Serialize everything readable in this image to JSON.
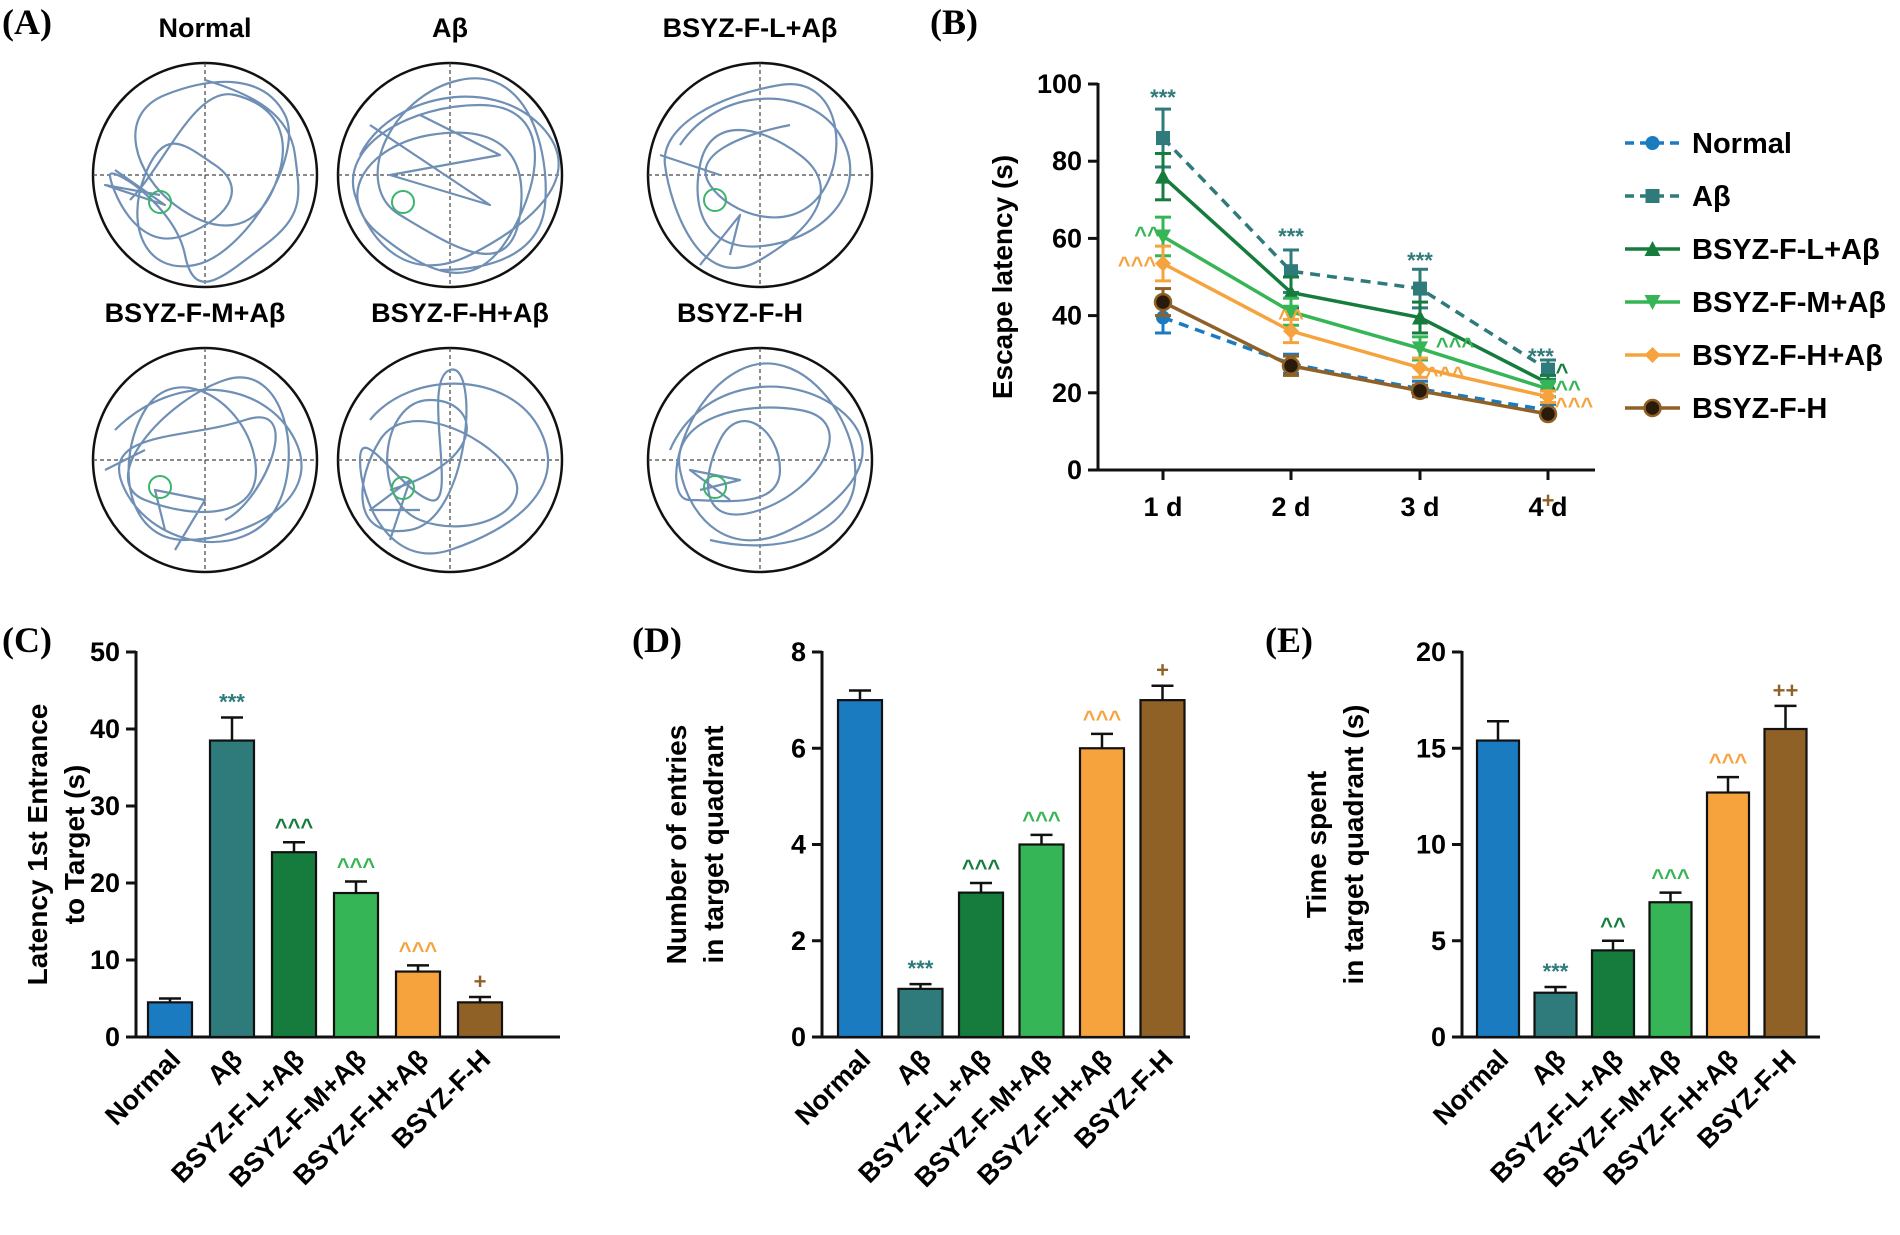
{
  "panels": {
    "A": {
      "label": "(A)",
      "mazes": [
        {
          "title": "Normal"
        },
        {
          "title": "Aβ"
        },
        {
          "title": "BSYZ-F-L+Aβ"
        },
        {
          "title": "BSYZ-F-M+Aβ"
        },
        {
          "title": "BSYZ-F-H+Aβ"
        },
        {
          "title": "BSYZ-F-H"
        }
      ]
    },
    "B": {
      "label": "(B)"
    },
    "C": {
      "label": "(C)"
    },
    "D": {
      "label": "(D)"
    },
    "E": {
      "label": "(E)"
    }
  },
  "colors": {
    "Normal": "#1b7bc1",
    "Abeta": "#2f7a7a",
    "L": "#167c3d",
    "M": "#35b555",
    "H": "#f6a33e",
    "F": "#8f6127",
    "target": "#3cb46e",
    "path": "#6f8fb4"
  },
  "chart_data": [
    {
      "id": "B",
      "type": "line",
      "ylabel": "Escape latency (s)",
      "xlabel": "",
      "categories": [
        "1 d",
        "2 d",
        "3 d",
        "4 d"
      ],
      "ylim": [
        0,
        100
      ],
      "yticks": [
        0,
        20,
        40,
        60,
        80,
        100
      ],
      "legend": "right",
      "series": [
        {
          "name": "Normal",
          "values": [
            39.5,
            27.5,
            21,
            15.5
          ],
          "err": [
            4,
            2.5,
            2,
            1.5
          ],
          "style": "dashed",
          "marker": "circle",
          "color": "#1b7bc1"
        },
        {
          "name": "Aβ",
          "values": [
            86,
            51.5,
            47,
            26
          ],
          "err": [
            7.5,
            5.5,
            5,
            2.5
          ],
          "style": "dashed",
          "marker": "square",
          "color": "#2f7a7a",
          "sig": [
            "***",
            "***",
            "***",
            "***"
          ]
        },
        {
          "name": "BSYZ-F-L+Aβ",
          "values": [
            76,
            46,
            39.5,
            22.5
          ],
          "err": [
            6,
            4,
            4,
            2
          ],
          "style": "solid",
          "marker": "triangle-up",
          "color": "#167c3d",
          "sig": [
            "",
            "",
            "",
            "^"
          ]
        },
        {
          "name": "BSYZ-F-M+Aβ",
          "values": [
            60.5,
            41,
            31.5,
            21
          ],
          "err": [
            5,
            3.5,
            3,
            2
          ],
          "style": "solid",
          "marker": "triangle-down",
          "color": "#35b555",
          "sig": [
            "^^",
            "",
            "^^^",
            "^^"
          ]
        },
        {
          "name": "BSYZ-F-H+Aβ",
          "values": [
            53.5,
            36,
            26.5,
            19
          ],
          "err": [
            4.5,
            3,
            2.5,
            1.5
          ],
          "style": "solid",
          "marker": "diamond",
          "color": "#f6a33e",
          "sig": [
            "^^^",
            "^^",
            "^^^",
            "^^^"
          ]
        },
        {
          "name": "BSYZ-F-H",
          "values": [
            43.5,
            27,
            20.5,
            14.5
          ],
          "err": [
            3.5,
            2.5,
            1.5,
            1
          ],
          "style": "solid",
          "marker": "circle-dark",
          "color": "#8f6127",
          "sig": [
            "",
            "",
            "",
            "+"
          ]
        }
      ]
    },
    {
      "id": "C",
      "type": "bar",
      "ylabel": [
        "Latency 1st Entrance",
        "to Target (s)"
      ],
      "xlabel": "",
      "categories": [
        "Normal",
        "Aβ",
        "BSYZ-F-L+Aβ",
        "BSYZ-F-M+Aβ",
        "BSYZ-F-H+Aβ",
        "BSYZ-F-H"
      ],
      "values": [
        4.5,
        38.5,
        24,
        18.7,
        8.5,
        4.5
      ],
      "errors": [
        0.5,
        3,
        1.3,
        1.5,
        0.8,
        0.7
      ],
      "sig": [
        "",
        "***",
        "^^^",
        "^^^",
        "^^^",
        "+"
      ],
      "ylim": [
        0,
        50
      ],
      "yticks": [
        0,
        10,
        20,
        30,
        40,
        50
      ]
    },
    {
      "id": "D",
      "type": "bar",
      "ylabel": [
        "Number of entries",
        "in target quadrant"
      ],
      "xlabel": "",
      "categories": [
        "Normal",
        "Aβ",
        "BSYZ-F-L+Aβ",
        "BSYZ-F-M+Aβ",
        "BSYZ-F-H+Aβ",
        "BSYZ-F-H"
      ],
      "values": [
        7,
        1,
        3,
        4,
        6,
        7
      ],
      "errors": [
        0.2,
        0.1,
        0.2,
        0.2,
        0.3,
        0.3
      ],
      "sig": [
        "",
        "***",
        "^^^",
        "^^^",
        "^^^",
        "+"
      ],
      "ylim": [
        0,
        8
      ],
      "yticks": [
        0,
        2,
        4,
        6,
        8
      ]
    },
    {
      "id": "E",
      "type": "bar",
      "ylabel": [
        "Time spent",
        "in target quadrant (s)"
      ],
      "xlabel": "",
      "categories": [
        "Normal",
        "Aβ",
        "BSYZ-F-L+Aβ",
        "BSYZ-F-M+Aβ",
        "BSYZ-F-H+Aβ",
        "BSYZ-F-H"
      ],
      "values": [
        15.4,
        2.3,
        4.5,
        7,
        12.7,
        16
      ],
      "errors": [
        1,
        0.3,
        0.5,
        0.5,
        0.8,
        1.2
      ],
      "sig": [
        "",
        "***",
        "^^",
        "^^^",
        "^^^",
        "++"
      ],
      "ylim": [
        0,
        20
      ],
      "yticks": [
        0,
        5,
        10,
        15,
        20
      ]
    }
  ]
}
